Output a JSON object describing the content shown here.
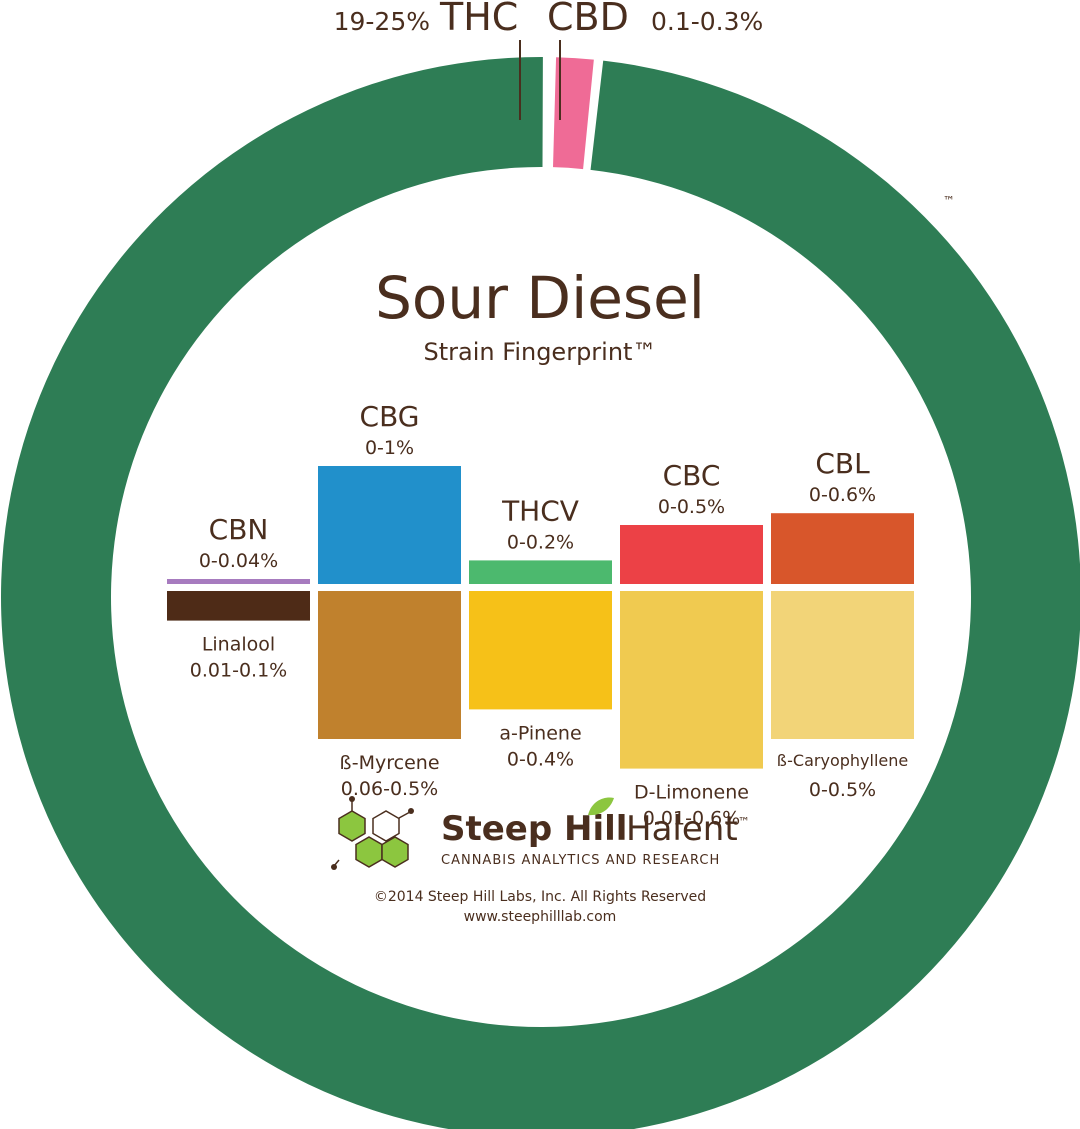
{
  "chart_data": {
    "type": "donut-and-bars",
    "title": "Sour Diesel",
    "subtitle": "Strain Fingerprint™",
    "trademark": "™",
    "ring": {
      "slices": [
        {
          "name": "THC",
          "range": "19-25%",
          "value": 97.5,
          "color": "#2e7d55"
        },
        {
          "name": "CBD",
          "range": "0.1-0.3%",
          "value": 1.1,
          "color": "#ef6b96"
        }
      ]
    },
    "cannabinoids": [
      {
        "name": "CBN",
        "range": "0-0.04%",
        "max": 0.04,
        "color": "#a77bbf"
      },
      {
        "name": "CBG",
        "range": "0-1%",
        "max": 1.0,
        "color": "#2190cb"
      },
      {
        "name": "THCV",
        "range": "0-0.2%",
        "max": 0.2,
        "color": "#4cb96e"
      },
      {
        "name": "CBC",
        "range": "0-0.5%",
        "max": 0.5,
        "color": "#ec4146"
      },
      {
        "name": "CBL",
        "range": "0-0.6%",
        "max": 0.6,
        "color": "#d8562b"
      }
    ],
    "terpenes": [
      {
        "name": "Linalool",
        "range": "0.01-0.1%",
        "max": 0.1,
        "color": "#4e2b17"
      },
      {
        "name": "ß-Myrcene",
        "range": "0.06-0.5%",
        "max": 0.5,
        "color": "#c0812d"
      },
      {
        "name": "a-Pinene",
        "range": "0-0.4%",
        "max": 0.4,
        "color": "#f6c118"
      },
      {
        "name": "D-Limonene",
        "range": "0.01-0.6%",
        "max": 0.6,
        "color": "#f0ca50"
      },
      {
        "name": "ß-Caryophyllene",
        "range": "0-0.5%",
        "max": 0.5,
        "color": "#f2d478"
      }
    ]
  },
  "branding": {
    "name_bold": "Steep Hill",
    "name_light": "Halent",
    "tm": "™",
    "tagline": "CANNABIS ANALYTICS AND RESEARCH",
    "copyright": "©2014 Steep Hill Labs, Inc. All Rights Reserved",
    "url": "www.steephilllab.com",
    "logo_color": "#8cc63f"
  }
}
